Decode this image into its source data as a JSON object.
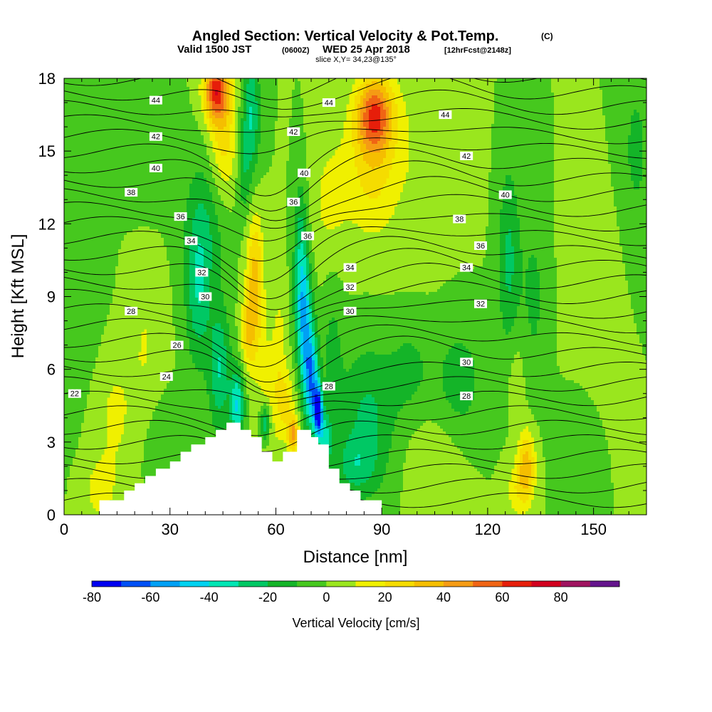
{
  "title": {
    "main": "Angled Section: Vertical Velocity & Pot.Temp.",
    "main_suffix": "(C)",
    "valid_prefix": "Valid 1500 JST",
    "valid_utc": "(0600Z)",
    "valid_date": "WED 25 Apr 2018",
    "forecast": "[12hrFcst@2148z]",
    "slice": "slice X,Y= 34,23@135°"
  },
  "chart_data": {
    "type": "heatmap",
    "title": "Angled Section: Vertical Velocity & Pot.Temp.",
    "xlabel": "Distance [nm]",
    "ylabel": "Height [Kft MSL]",
    "xlim": [
      0,
      165
    ],
    "ylim": [
      0,
      18
    ],
    "x_ticks": [
      "0",
      "30",
      "60",
      "90",
      "120",
      "150"
    ],
    "y_ticks": [
      "0",
      "3",
      "6",
      "9",
      "12",
      "15",
      "18"
    ],
    "colorbar": {
      "label": "Vertical Velocity [cm/s]",
      "tick_labels": [
        "-80",
        "-60",
        "-40",
        "-20",
        "0",
        "20",
        "40",
        "60",
        "80"
      ],
      "bins": [
        -80,
        -70,
        -60,
        -50,
        -40,
        -30,
        -20,
        -10,
        0,
        10,
        20,
        30,
        40,
        50,
        60,
        70,
        80,
        90
      ],
      "colors": [
        "#0000f0",
        "#0050f5",
        "#00a0f5",
        "#00d2f0",
        "#00e6b4",
        "#00c864",
        "#14b428",
        "#46c81e",
        "#9ae61e",
        "#f0f000",
        "#f5dc00",
        "#f5be00",
        "#f59b14",
        "#f06414",
        "#e61e0a",
        "#d2001e",
        "#a01460",
        "#64148c"
      ]
    },
    "theta_isentropes": {
      "unit": "C",
      "levels": [
        22,
        24,
        26,
        28,
        30,
        32,
        34,
        36,
        38,
        40,
        42,
        44
      ],
      "labels": [
        {
          "text": "22",
          "x": 3,
          "y": 5.0
        },
        {
          "text": "24",
          "x": 29,
          "y": 5.7
        },
        {
          "text": "26",
          "x": 32,
          "y": 7.0
        },
        {
          "text": "28",
          "x": 19,
          "y": 8.4
        },
        {
          "text": "30",
          "x": 40,
          "y": 9.0
        },
        {
          "text": "32",
          "x": 39,
          "y": 10.0
        },
        {
          "text": "34",
          "x": 36,
          "y": 11.3
        },
        {
          "text": "36",
          "x": 33,
          "y": 12.3
        },
        {
          "text": "38",
          "x": 19,
          "y": 13.3
        },
        {
          "text": "40",
          "x": 26,
          "y": 14.3
        },
        {
          "text": "42",
          "x": 26,
          "y": 15.6
        },
        {
          "text": "44",
          "x": 26,
          "y": 17.1
        },
        {
          "text": "44",
          "x": 75,
          "y": 17.0
        },
        {
          "text": "42",
          "x": 65,
          "y": 15.8
        },
        {
          "text": "40",
          "x": 68,
          "y": 14.1
        },
        {
          "text": "36",
          "x": 65,
          "y": 12.9
        },
        {
          "text": "36",
          "x": 69,
          "y": 11.5
        },
        {
          "text": "34",
          "x": 81,
          "y": 10.2
        },
        {
          "text": "32",
          "x": 81,
          "y": 9.4
        },
        {
          "text": "30",
          "x": 81,
          "y": 8.4
        },
        {
          "text": "28",
          "x": 75,
          "y": 5.3
        },
        {
          "text": "44",
          "x": 108,
          "y": 16.5
        },
        {
          "text": "42",
          "x": 114,
          "y": 14.8
        },
        {
          "text": "38",
          "x": 112,
          "y": 12.2
        },
        {
          "text": "36",
          "x": 118,
          "y": 11.1
        },
        {
          "text": "34",
          "x": 114,
          "y": 10.2
        },
        {
          "text": "32",
          "x": 118,
          "y": 8.7
        },
        {
          "text": "30",
          "x": 114,
          "y": 6.3
        },
        {
          "text": "28",
          "x": 114,
          "y": 4.9
        },
        {
          "text": "40",
          "x": 125,
          "y": 13.2
        }
      ]
    },
    "terrain": {
      "x": [
        0,
        10,
        10,
        17,
        17,
        20,
        20,
        23,
        23,
        26,
        26,
        30,
        30,
        33,
        33,
        36,
        36,
        40,
        40,
        43,
        43,
        46,
        46,
        50,
        50,
        53,
        53,
        56,
        56,
        59,
        59,
        62,
        62,
        66,
        66,
        70,
        70,
        72,
        72,
        75,
        75,
        78,
        78,
        81,
        81,
        84,
        84,
        90,
        90,
        165
      ],
      "h": [
        0,
        0,
        0.6,
        0.6,
        1.0,
        1.0,
        1.3,
        1.3,
        1.6,
        1.6,
        1.9,
        1.9,
        2.2,
        2.2,
        2.6,
        2.6,
        2.9,
        2.9,
        3.2,
        3.2,
        3.5,
        3.5,
        3.8,
        3.8,
        3.5,
        3.5,
        3.2,
        3.2,
        2.6,
        2.6,
        2.2,
        2.2,
        2.6,
        2.6,
        3.5,
        3.5,
        3.2,
        3.2,
        2.9,
        2.9,
        1.9,
        1.9,
        1.3,
        1.3,
        1.0,
        1.0,
        0.6,
        0.6,
        0,
        0
      ]
    }
  }
}
